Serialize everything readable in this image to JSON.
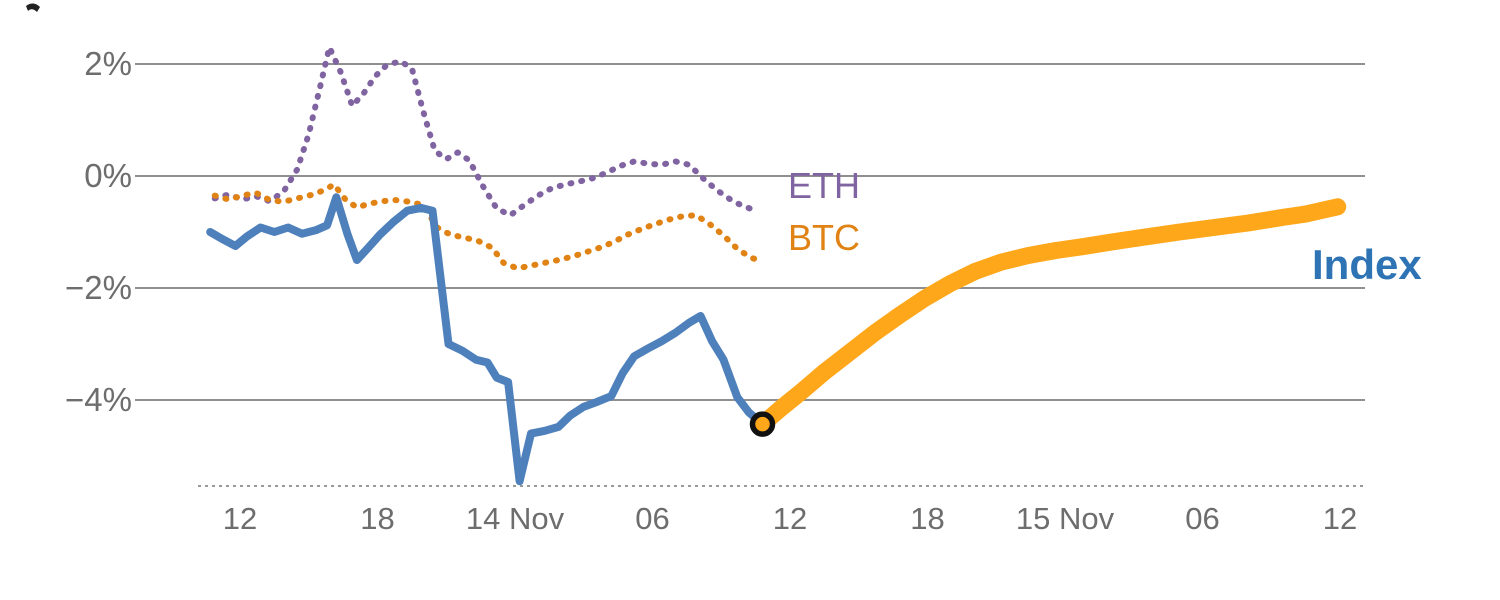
{
  "chart_data": {
    "type": "line",
    "title": "",
    "x_axis": {
      "unit": "hour-of-day",
      "ticks": [
        {
          "hour": 12,
          "label": "12"
        },
        {
          "hour": 18,
          "label": "18"
        },
        {
          "hour": 24,
          "label": "14 Nov"
        },
        {
          "hour": 30,
          "label": "06"
        },
        {
          "hour": 36,
          "label": "12"
        },
        {
          "hour": 42,
          "label": "18"
        },
        {
          "hour": 48,
          "label": "15 Nov"
        },
        {
          "hour": 54,
          "label": "06"
        },
        {
          "hour": 60,
          "label": "12"
        }
      ]
    },
    "y_axis": {
      "unit": "%",
      "min": -5.6,
      "max": 2.5,
      "ticks": [
        {
          "value": 2,
          "label": "2%"
        },
        {
          "value": 0,
          "label": "0%"
        },
        {
          "value": -2,
          "label": "−2%"
        },
        {
          "value": -4,
          "label": "−4%"
        }
      ]
    },
    "grid": "horizontal",
    "legend_position": "inline-labels",
    "index_label_color": "#2E74B5",
    "marker": {
      "hour": 34.8,
      "value": -4.43,
      "fill": "#FFA71A",
      "ring_color": "#111111"
    },
    "series": [
      {
        "key": "eth",
        "name": "ETH",
        "color": "#8064A2",
        "line_style": "dotted",
        "points": [
          [
            10.9,
            -0.4
          ],
          [
            11.5,
            -0.33
          ],
          [
            12.1,
            -0.42
          ],
          [
            12.7,
            -0.36
          ],
          [
            13.3,
            -0.45
          ],
          [
            13.9,
            -0.28
          ],
          [
            14.5,
            0.12
          ],
          [
            15.0,
            0.75
          ],
          [
            15.5,
            1.6
          ],
          [
            15.9,
            2.3
          ],
          [
            16.4,
            1.85
          ],
          [
            16.9,
            1.25
          ],
          [
            17.4,
            1.48
          ],
          [
            17.9,
            1.78
          ],
          [
            18.4,
            1.98
          ],
          [
            19.0,
            2.05
          ],
          [
            19.5,
            1.92
          ],
          [
            20.0,
            1.15
          ],
          [
            20.5,
            0.45
          ],
          [
            21.0,
            0.3
          ],
          [
            21.5,
            0.42
          ],
          [
            22.0,
            0.28
          ],
          [
            22.6,
            -0.18
          ],
          [
            23.2,
            -0.58
          ],
          [
            23.8,
            -0.7
          ],
          [
            24.4,
            -0.52
          ],
          [
            25.0,
            -0.35
          ],
          [
            25.6,
            -0.22
          ],
          [
            26.2,
            -0.15
          ],
          [
            26.8,
            -0.1
          ],
          [
            27.4,
            -0.04
          ],
          [
            28.0,
            0.06
          ],
          [
            28.6,
            0.18
          ],
          [
            29.2,
            0.26
          ],
          [
            29.8,
            0.22
          ],
          [
            30.4,
            0.2
          ],
          [
            31.0,
            0.26
          ],
          [
            31.6,
            0.2
          ],
          [
            32.2,
            -0.04
          ],
          [
            32.8,
            -0.25
          ],
          [
            33.4,
            -0.42
          ],
          [
            34.0,
            -0.55
          ],
          [
            34.6,
            -0.62
          ]
        ]
      },
      {
        "key": "btc",
        "name": "BTC",
        "color": "#E08214",
        "line_style": "dotted",
        "points": [
          [
            10.9,
            -0.35
          ],
          [
            11.5,
            -0.42
          ],
          [
            12.1,
            -0.35
          ],
          [
            12.7,
            -0.3
          ],
          [
            13.3,
            -0.43
          ],
          [
            13.9,
            -0.46
          ],
          [
            14.5,
            -0.4
          ],
          [
            15.1,
            -0.34
          ],
          [
            15.7,
            -0.25
          ],
          [
            16.1,
            -0.15
          ],
          [
            16.6,
            -0.42
          ],
          [
            17.1,
            -0.56
          ],
          [
            17.6,
            -0.5
          ],
          [
            18.2,
            -0.45
          ],
          [
            18.8,
            -0.43
          ],
          [
            19.4,
            -0.46
          ],
          [
            20.0,
            -0.52
          ],
          [
            20.6,
            -0.92
          ],
          [
            21.2,
            -1.05
          ],
          [
            21.8,
            -1.1
          ],
          [
            22.4,
            -1.16
          ],
          [
            23.0,
            -1.28
          ],
          [
            23.5,
            -1.55
          ],
          [
            24.1,
            -1.65
          ],
          [
            24.7,
            -1.6
          ],
          [
            25.3,
            -1.55
          ],
          [
            25.9,
            -1.5
          ],
          [
            26.5,
            -1.44
          ],
          [
            27.1,
            -1.36
          ],
          [
            27.7,
            -1.28
          ],
          [
            28.3,
            -1.18
          ],
          [
            28.9,
            -1.05
          ],
          [
            29.5,
            -0.95
          ],
          [
            30.1,
            -0.86
          ],
          [
            30.7,
            -0.78
          ],
          [
            31.3,
            -0.72
          ],
          [
            31.9,
            -0.7
          ],
          [
            32.5,
            -0.86
          ],
          [
            33.1,
            -1.06
          ],
          [
            33.7,
            -1.3
          ],
          [
            34.3,
            -1.46
          ],
          [
            34.8,
            -1.52
          ]
        ]
      },
      {
        "key": "index",
        "name": "Index",
        "color": "#4E80BC",
        "line_style": "solid",
        "points": [
          [
            10.7,
            -1.0
          ],
          [
            11.2,
            -1.12
          ],
          [
            11.8,
            -1.25
          ],
          [
            12.3,
            -1.08
          ],
          [
            12.9,
            -0.92
          ],
          [
            13.5,
            -1.0
          ],
          [
            14.1,
            -0.92
          ],
          [
            14.7,
            -1.03
          ],
          [
            15.3,
            -0.97
          ],
          [
            15.8,
            -0.88
          ],
          [
            16.2,
            -0.38
          ],
          [
            16.7,
            -1.05
          ],
          [
            17.1,
            -1.5
          ],
          [
            17.6,
            -1.28
          ],
          [
            18.1,
            -1.05
          ],
          [
            18.7,
            -0.82
          ],
          [
            19.3,
            -0.62
          ],
          [
            19.9,
            -0.57
          ],
          [
            20.4,
            -0.62
          ],
          [
            21.1,
            -3.0
          ],
          [
            21.7,
            -3.12
          ],
          [
            22.3,
            -3.28
          ],
          [
            22.8,
            -3.33
          ],
          [
            23.2,
            -3.6
          ],
          [
            23.7,
            -3.68
          ],
          [
            24.2,
            -5.45
          ],
          [
            24.7,
            -4.6
          ],
          [
            25.3,
            -4.55
          ],
          [
            25.9,
            -4.48
          ],
          [
            26.4,
            -4.28
          ],
          [
            27.0,
            -4.12
          ],
          [
            27.6,
            -4.03
          ],
          [
            28.2,
            -3.93
          ],
          [
            28.7,
            -3.52
          ],
          [
            29.2,
            -3.22
          ],
          [
            29.8,
            -3.08
          ],
          [
            30.4,
            -2.95
          ],
          [
            31.0,
            -2.8
          ],
          [
            31.6,
            -2.62
          ],
          [
            32.1,
            -2.5
          ],
          [
            32.6,
            -2.95
          ],
          [
            33.1,
            -3.28
          ],
          [
            33.7,
            -3.95
          ],
          [
            34.2,
            -4.22
          ],
          [
            34.8,
            -4.43
          ]
        ]
      },
      {
        "key": "index-projection",
        "name": "",
        "color": "#FFA71A",
        "line_style": "solid-thick",
        "points": [
          [
            34.8,
            -4.43
          ],
          [
            35.6,
            -4.15
          ],
          [
            36.5,
            -3.85
          ],
          [
            37.5,
            -3.5
          ],
          [
            38.6,
            -3.15
          ],
          [
            39.7,
            -2.8
          ],
          [
            40.8,
            -2.48
          ],
          [
            41.9,
            -2.18
          ],
          [
            43.0,
            -1.92
          ],
          [
            44.1,
            -1.7
          ],
          [
            45.2,
            -1.54
          ],
          [
            46.4,
            -1.42
          ],
          [
            47.6,
            -1.33
          ],
          [
            48.8,
            -1.26
          ],
          [
            50.0,
            -1.18
          ],
          [
            51.5,
            -1.09
          ],
          [
            53.0,
            -1.0
          ],
          [
            54.5,
            -0.92
          ],
          [
            56.0,
            -0.84
          ],
          [
            57.5,
            -0.74
          ],
          [
            58.5,
            -0.68
          ],
          [
            59.9,
            -0.55
          ]
        ]
      }
    ]
  }
}
